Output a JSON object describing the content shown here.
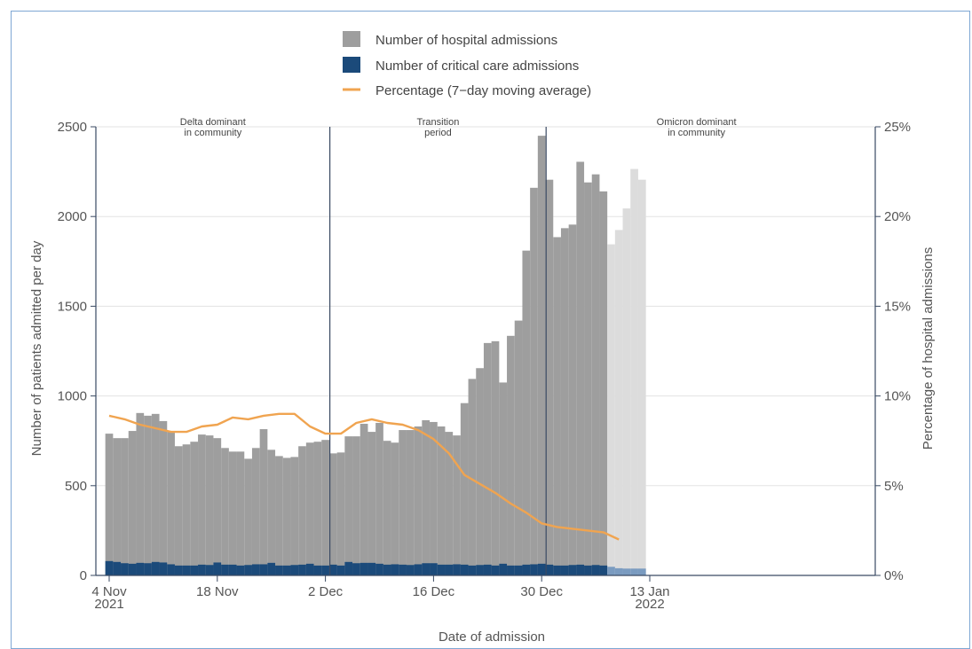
{
  "chart_data": {
    "type": "bar",
    "legend": {
      "placement": "top-center",
      "entries": [
        {
          "key": "hospital",
          "label": "Number of hospital admissions",
          "color": "#9e9e9e",
          "symbol": "square"
        },
        {
          "key": "critical",
          "label": "Number of critical care admissions",
          "color": "#1b4a7a",
          "symbol": "square"
        },
        {
          "key": "percentage",
          "label": "Percentage (7−day moving average)",
          "color": "#f0a450",
          "symbol": "line"
        }
      ]
    },
    "xlabel": "Date of admission",
    "ylabel": "Number of patients admitted per day",
    "y2label": "Percentage of hospital admissions",
    "ylim": [
      0,
      2500
    ],
    "y2lim": [
      0,
      25
    ],
    "yticks": [
      "0",
      "500",
      "1000",
      "1500",
      "2000",
      "2500"
    ],
    "y2ticks": [
      "0%",
      "5%",
      "10%",
      "15%",
      "20%",
      "25%"
    ],
    "xticks": [
      {
        "lines": [
          "4 Nov",
          "2021"
        ],
        "date": "2021-11-04"
      },
      {
        "lines": [
          "18 Nov"
        ],
        "date": "2021-11-18"
      },
      {
        "lines": [
          "2 Dec"
        ],
        "date": "2021-12-02"
      },
      {
        "lines": [
          "16 Dec"
        ],
        "date": "2021-12-16"
      },
      {
        "lines": [
          "30 Dec"
        ],
        "date": "2021-12-30"
      },
      {
        "lines": [
          "13 Jan",
          "2022"
        ],
        "date": "2022-01-13"
      }
    ],
    "periods": [
      {
        "lines": [
          "Delta dominant",
          "in community"
        ],
        "from": "2021-11-04",
        "to": "2021-12-02"
      },
      {
        "lines": [
          "Transition",
          "period"
        ],
        "from": "2021-12-02",
        "to": "2021-12-30"
      },
      {
        "lines": [
          "Omicron dominant",
          "in community"
        ],
        "from": "2021-12-30",
        "to": "2022-01-13"
      }
    ],
    "period_boundaries": [
      "2021-12-02",
      "2021-12-30"
    ],
    "x_range": [
      "2021-11-04",
      "2022-01-13"
    ],
    "dates": [
      "2021-11-04",
      "2021-11-05",
      "2021-11-06",
      "2021-11-07",
      "2021-11-08",
      "2021-11-09",
      "2021-11-10",
      "2021-11-11",
      "2021-11-12",
      "2021-11-13",
      "2021-11-14",
      "2021-11-15",
      "2021-11-16",
      "2021-11-17",
      "2021-11-18",
      "2021-11-19",
      "2021-11-20",
      "2021-11-21",
      "2021-11-22",
      "2021-11-23",
      "2021-11-24",
      "2021-11-25",
      "2021-11-26",
      "2021-11-27",
      "2021-11-28",
      "2021-11-29",
      "2021-11-30",
      "2021-12-01",
      "2021-12-02",
      "2021-12-03",
      "2021-12-04",
      "2021-12-05",
      "2021-12-06",
      "2021-12-07",
      "2021-12-08",
      "2021-12-09",
      "2021-12-10",
      "2021-12-11",
      "2021-12-12",
      "2021-12-13",
      "2021-12-14",
      "2021-12-15",
      "2021-12-16",
      "2021-12-17",
      "2021-12-18",
      "2021-12-19",
      "2021-12-20",
      "2021-12-21",
      "2021-12-22",
      "2021-12-23",
      "2021-12-24",
      "2021-12-25",
      "2021-12-26",
      "2021-12-27",
      "2021-12-28",
      "2021-12-29",
      "2021-12-30",
      "2021-12-31",
      "2022-01-01",
      "2022-01-02",
      "2022-01-03",
      "2022-01-04",
      "2022-01-05",
      "2022-01-06",
      "2022-01-07",
      "2022-01-08",
      "2022-01-09",
      "2022-01-10",
      "2022-01-11",
      "2022-01-12"
    ],
    "series": [
      {
        "name": "Number of hospital admissions",
        "key": "hospital",
        "values": [
          790,
          765,
          765,
          805,
          905,
          890,
          900,
          860,
          800,
          720,
          730,
          745,
          785,
          780,
          765,
          710,
          690,
          690,
          650,
          710,
          815,
          700,
          665,
          655,
          660,
          720,
          740,
          745,
          755,
          680,
          685,
          775,
          775,
          845,
          800,
          850,
          750,
          740,
          810,
          810,
          830,
          865,
          855,
          830,
          800,
          780,
          960,
          1095,
          1155,
          1295,
          1305,
          1075,
          1335,
          1420,
          1810,
          2160,
          2450,
          2205,
          1885,
          1935,
          1955,
          2305,
          2190,
          2235,
          2140,
          1845,
          1925,
          2045,
          2265,
          2205
        ],
        "provisional_values_shaded": [
          "2022-01-08",
          "2022-01-09",
          "2022-01-10",
          "2022-01-11",
          "2022-01-12"
        ]
      },
      {
        "name": "Number of critical care admissions",
        "key": "critical",
        "values": [
          80,
          75,
          68,
          65,
          70,
          68,
          75,
          72,
          62,
          55,
          55,
          55,
          60,
          58,
          72,
          60,
          60,
          55,
          58,
          62,
          62,
          70,
          55,
          55,
          58,
          60,
          65,
          55,
          55,
          60,
          55,
          75,
          68,
          70,
          70,
          65,
          60,
          62,
          60,
          58,
          62,
          68,
          68,
          60,
          60,
          62,
          60,
          55,
          58,
          60,
          55,
          65,
          55,
          55,
          60,
          62,
          65,
          60,
          55,
          55,
          58,
          60,
          55,
          58,
          55,
          48,
          40,
          38,
          38,
          38
        ]
      },
      {
        "name": "Percentage (7−day moving average)",
        "key": "percentage",
        "axis": "right",
        "x": [
          "2021-11-04",
          "2021-11-06",
          "2021-11-08",
          "2021-11-10",
          "2021-11-12",
          "2021-11-14",
          "2021-11-16",
          "2021-11-18",
          "2021-11-20",
          "2021-11-22",
          "2021-11-24",
          "2021-11-26",
          "2021-11-28",
          "2021-11-30",
          "2021-12-02",
          "2021-12-04",
          "2021-12-06",
          "2021-12-08",
          "2021-12-10",
          "2021-12-12",
          "2021-12-14",
          "2021-12-16",
          "2021-12-18",
          "2021-12-20",
          "2021-12-22",
          "2021-12-24",
          "2021-12-26",
          "2021-12-28",
          "2021-12-30",
          "2022-01-01",
          "2022-01-03",
          "2022-01-05",
          "2022-01-07",
          "2022-01-09"
        ],
        "values": [
          8.9,
          8.7,
          8.4,
          8.2,
          8.0,
          8.0,
          8.3,
          8.4,
          8.8,
          8.7,
          8.9,
          9.0,
          9.0,
          8.3,
          7.9,
          7.9,
          8.5,
          8.7,
          8.5,
          8.4,
          8.1,
          7.6,
          6.8,
          5.6,
          5.1,
          4.6,
          4.0,
          3.5,
          2.9,
          2.7,
          2.6,
          2.5,
          2.4,
          2.0
        ]
      }
    ]
  }
}
